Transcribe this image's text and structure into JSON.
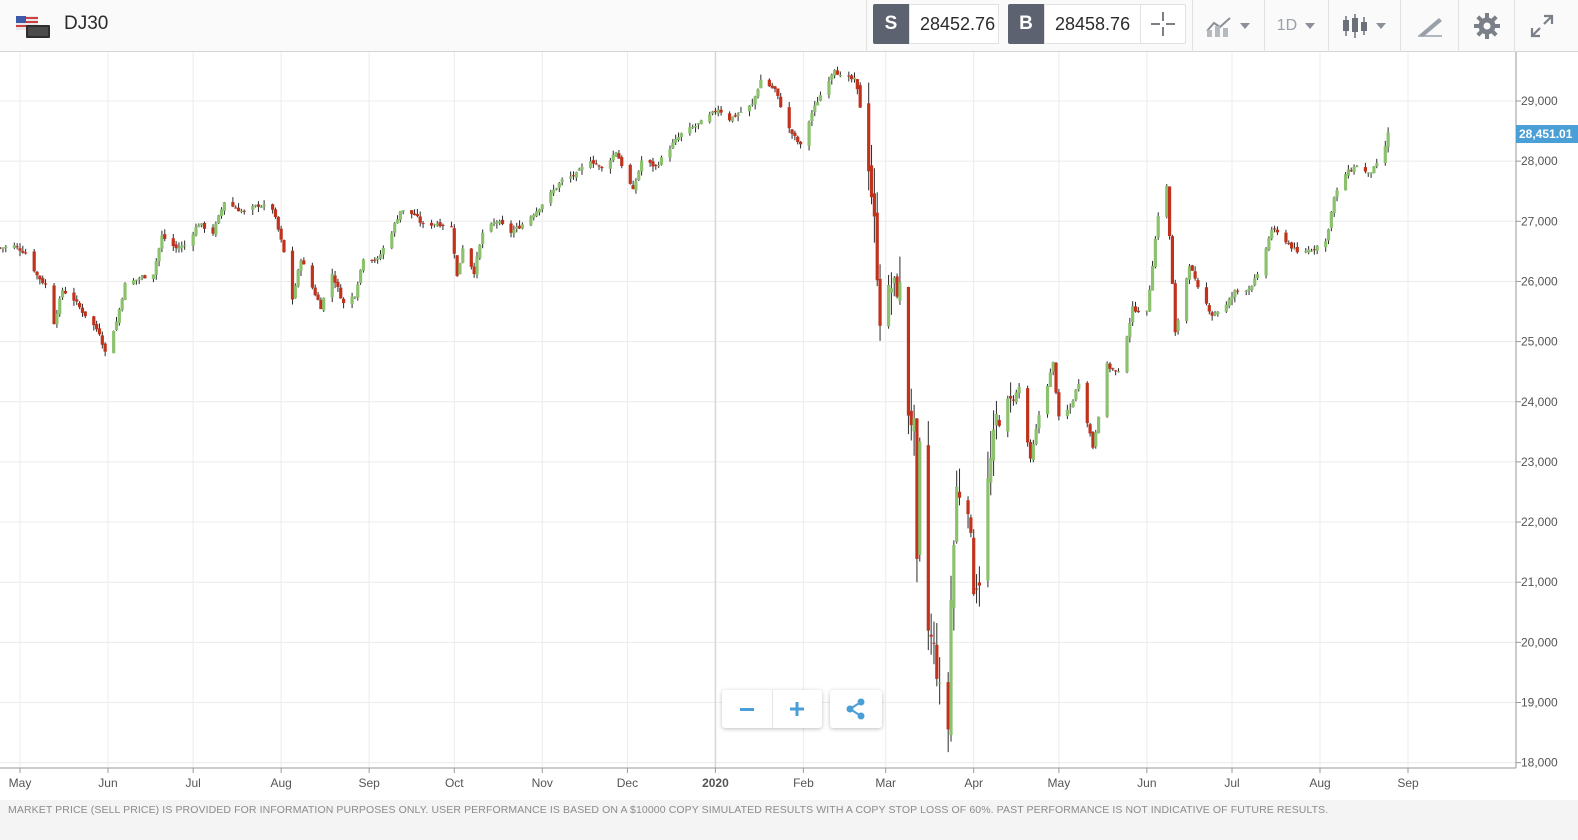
{
  "header": {
    "symbol": "DJ30",
    "flag_icon": "us-flag-icon",
    "sell": {
      "label": "S",
      "price": "28452.76"
    },
    "buy": {
      "label": "B",
      "price": "28458.76"
    },
    "interval": "1D",
    "tools": [
      "crosshair-icon",
      "chart-type-icon",
      "interval-dropdown",
      "candles-icon",
      "draw-icon",
      "gear-icon",
      "expand-icon"
    ]
  },
  "footer": {
    "disclaimer": "MARKET PRICE (SELL PRICE) IS PROVIDED FOR INFORMATION PURPOSES ONLY. USER PERFORMANCE IS BASED ON A $10000 COPY SIMULATED RESULTS WITH A COPY STOP LOSS OF 60%. PAST PERFORMANCE IS NOT INDICATIVE OF FUTURE RESULTS."
  },
  "controls": {
    "zoom_out": "zoom-out-icon",
    "zoom_in": "zoom-in-icon",
    "share": "share-icon"
  },
  "colors": {
    "up": "#8cc26e",
    "down": "#c0321c",
    "wick": "#2b2b2b",
    "last_price_tag": "#4a9fd6",
    "grid": "#ececec"
  },
  "chart_data": {
    "type": "candlestick",
    "title": "DJ30",
    "ylim": [
      18000,
      29800
    ],
    "y_ticks": [
      "18,000",
      "19,000",
      "20,000",
      "21,000",
      "22,000",
      "23,000",
      "24,000",
      "25,000",
      "26,000",
      "27,000",
      "28,000",
      "29,000"
    ],
    "y_tick_values": [
      18000,
      19000,
      20000,
      21000,
      22000,
      23000,
      24000,
      25000,
      26000,
      27000,
      28000,
      29000
    ],
    "x_labels": [
      "May",
      "Jun",
      "Jul",
      "Aug",
      "Sep",
      "Oct",
      "Nov",
      "Dec",
      "2020",
      "Feb",
      "Mar",
      "Apr",
      "May",
      "Jun",
      "Jul",
      "Aug",
      "Sep"
    ],
    "x_label_dates": [
      "2019-05-01",
      "2019-06-01",
      "2019-07-01",
      "2019-08-01",
      "2019-09-01",
      "2019-10-01",
      "2019-11-01",
      "2019-12-01",
      "2020-01-01",
      "2020-02-01",
      "2020-03-01",
      "2020-04-01",
      "2020-05-01",
      "2020-06-01",
      "2020-07-01",
      "2020-08-01",
      "2020-09-01"
    ],
    "x_range": [
      "2019-04-23",
      "2020-09-25"
    ],
    "last_price": "28,451.01",
    "last_price_value": 28451,
    "close_series": [
      [
        "2019-04-24",
        26560
      ],
      [
        "2019-04-29",
        26590
      ],
      [
        "2019-05-03",
        26480
      ],
      [
        "2019-05-07",
        26100
      ],
      [
        "2019-05-10",
        25940
      ],
      [
        "2019-05-13",
        25320
      ],
      [
        "2019-05-16",
        25860
      ],
      [
        "2019-05-20",
        25700
      ],
      [
        "2019-05-23",
        25500
      ],
      [
        "2019-05-29",
        25150
      ],
      [
        "2019-05-31",
        24820
      ],
      [
        "2019-06-04",
        25330
      ],
      [
        "2019-06-07",
        25950
      ],
      [
        "2019-06-12",
        26050
      ],
      [
        "2019-06-17",
        26140
      ],
      [
        "2019-06-20",
        26750
      ],
      [
        "2019-06-25",
        26550
      ],
      [
        "2019-06-28",
        26600
      ],
      [
        "2019-07-03",
        26960
      ],
      [
        "2019-07-08",
        26810
      ],
      [
        "2019-07-12",
        27330
      ],
      [
        "2019-07-16",
        27220
      ],
      [
        "2019-07-19",
        27150
      ],
      [
        "2019-07-24",
        27270
      ],
      [
        "2019-07-29",
        27210
      ],
      [
        "2019-07-31",
        26860
      ],
      [
        "2019-08-02",
        26480
      ],
      [
        "2019-08-05",
        25710
      ],
      [
        "2019-08-08",
        26380
      ],
      [
        "2019-08-12",
        25900
      ],
      [
        "2019-08-15",
        25580
      ],
      [
        "2019-08-19",
        26130
      ],
      [
        "2019-08-23",
        25630
      ],
      [
        "2019-08-27",
        25780
      ],
      [
        "2019-08-30",
        26400
      ],
      [
        "2019-09-04",
        26360
      ],
      [
        "2019-09-09",
        26830
      ],
      [
        "2019-09-12",
        27180
      ],
      [
        "2019-09-17",
        27110
      ],
      [
        "2019-09-20",
        26930
      ],
      [
        "2019-09-25",
        26970
      ],
      [
        "2019-09-30",
        26900
      ],
      [
        "2019-10-02",
        26080
      ],
      [
        "2019-10-04",
        26570
      ],
      [
        "2019-10-08",
        26160
      ],
      [
        "2019-10-11",
        26810
      ],
      [
        "2019-10-16",
        27000
      ],
      [
        "2019-10-21",
        26820
      ],
      [
        "2019-10-25",
        26950
      ],
      [
        "2019-10-30",
        27180
      ],
      [
        "2019-11-04",
        27460
      ],
      [
        "2019-11-08",
        27680
      ],
      [
        "2019-11-13",
        27780
      ],
      [
        "2019-11-18",
        28030
      ],
      [
        "2019-11-22",
        27870
      ],
      [
        "2019-11-27",
        28160
      ],
      [
        "2019-12-03",
        27500
      ],
      [
        "2019-12-06",
        28010
      ],
      [
        "2019-12-11",
        27910
      ],
      [
        "2019-12-16",
        28230
      ],
      [
        "2019-12-20",
        28450
      ],
      [
        "2019-12-27",
        28640
      ],
      [
        "2020-01-02",
        28870
      ],
      [
        "2020-01-06",
        28700
      ],
      [
        "2020-01-10",
        28820
      ],
      [
        "2020-01-14",
        28940
      ],
      [
        "2020-01-17",
        29350
      ],
      [
        "2020-01-22",
        29190
      ],
      [
        "2020-01-27",
        28530
      ],
      [
        "2020-01-31",
        28250
      ],
      [
        "2020-02-04",
        28800
      ],
      [
        "2020-02-07",
        29100
      ],
      [
        "2020-02-12",
        29550
      ],
      [
        "2020-02-14",
        29400
      ],
      [
        "2020-02-19",
        29350
      ],
      [
        "2020-02-21",
        28990
      ],
      [
        "2020-02-24",
        27960
      ],
      [
        "2020-02-26",
        26960
      ],
      [
        "2020-02-28",
        25400
      ],
      [
        "2020-03-03",
        25920
      ],
      [
        "2020-03-06",
        25860
      ],
      [
        "2020-03-09",
        23850
      ],
      [
        "2020-03-11",
        23550
      ],
      [
        "2020-03-12",
        21200
      ],
      [
        "2020-03-13",
        23180
      ],
      [
        "2020-03-16",
        20190
      ],
      [
        "2020-03-18",
        19900
      ],
      [
        "2020-03-20",
        19170
      ],
      [
        "2020-03-23",
        18590
      ],
      [
        "2020-03-24",
        20700
      ],
      [
        "2020-03-26",
        22550
      ],
      [
        "2020-03-30",
        22320
      ],
      [
        "2020-04-01",
        20950
      ],
      [
        "2020-04-03",
        21060
      ],
      [
        "2020-04-06",
        22650
      ],
      [
        "2020-04-09",
        23720
      ],
      [
        "2020-04-14",
        23950
      ],
      [
        "2020-04-17",
        24240
      ],
      [
        "2020-04-21",
        23020
      ],
      [
        "2020-04-24",
        23780
      ],
      [
        "2020-04-29",
        24640
      ],
      [
        "2020-05-01",
        23720
      ],
      [
        "2020-05-05",
        23900
      ],
      [
        "2020-05-08",
        24330
      ],
      [
        "2020-05-13",
        23250
      ],
      [
        "2020-05-18",
        24600
      ],
      [
        "2020-05-22",
        24470
      ],
      [
        "2020-05-27",
        25550
      ],
      [
        "2020-06-01",
        25480
      ],
      [
        "2020-06-05",
        27110
      ],
      [
        "2020-06-08",
        27570
      ],
      [
        "2020-06-11",
        25130
      ],
      [
        "2020-06-16",
        26290
      ],
      [
        "2020-06-19",
        25870
      ],
      [
        "2020-06-24",
        25450
      ],
      [
        "2020-06-29",
        25600
      ],
      [
        "2020-07-02",
        25830
      ],
      [
        "2020-07-07",
        25890
      ],
      [
        "2020-07-10",
        26080
      ],
      [
        "2020-07-15",
        26870
      ],
      [
        "2020-07-20",
        26680
      ],
      [
        "2020-07-24",
        26470
      ],
      [
        "2020-07-29",
        26540
      ],
      [
        "2020-08-03",
        26660
      ],
      [
        "2020-08-06",
        27390
      ],
      [
        "2020-08-10",
        27790
      ],
      [
        "2020-08-14",
        27930
      ],
      [
        "2020-08-18",
        27780
      ],
      [
        "2020-08-21",
        27930
      ],
      [
        "2020-08-24",
        28250
      ],
      [
        "2020-08-25",
        28451
      ]
    ]
  }
}
